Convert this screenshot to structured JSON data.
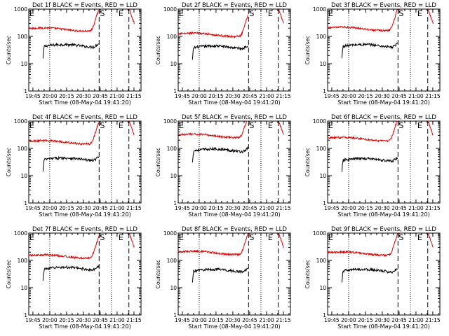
{
  "chart_data": {
    "type": "line",
    "panels": [
      {
        "title": "Det 1f BLACK = Events, RED = LLD",
        "black_level": 45,
        "red_level": 180
      },
      {
        "title": "Det 2f BLACK = Events, RED = LLD",
        "black_level": 40,
        "red_level": 115
      },
      {
        "title": "Det 3f BLACK = Events, RED = LLD",
        "black_level": 45,
        "red_level": 190
      },
      {
        "title": "Det 4f BLACK = Events, RED = LLD",
        "black_level": 40,
        "red_level": 170
      },
      {
        "title": "Det 5f BLACK = Events, RED = LLD",
        "black_level": 85,
        "red_level": 290
      },
      {
        "title": "Det 6f BLACK = Events, RED = LLD",
        "black_level": 38,
        "red_level": 220
      },
      {
        "title": "Det 7f BLACK = Events, RED = LLD",
        "black_level": 50,
        "red_level": 140
      },
      {
        "title": "Det 8f BLACK = Events, RED = LLD",
        "black_level": 42,
        "red_level": 190
      },
      {
        "title": "Det 9f BLACK = Events, RED = LLD",
        "black_level": 42,
        "red_level": 180
      }
    ],
    "xlabel": "Start Time (08-May-04 19:41:20)",
    "ylabel": "Counts/sec",
    "x_tick_labels": [
      "19:45",
      "20:00",
      "20:15",
      "20:30",
      "20:45",
      "21:00",
      "21:15"
    ],
    "y_tick_labels": [
      "1",
      "10",
      "100",
      "1000"
    ],
    "y_scale": "log",
    "ylim": [
      1,
      1000
    ],
    "markers": [
      "E",
      "S",
      "E"
    ],
    "series_colors": {
      "events": "#000000",
      "lld": "#e00000"
    }
  }
}
